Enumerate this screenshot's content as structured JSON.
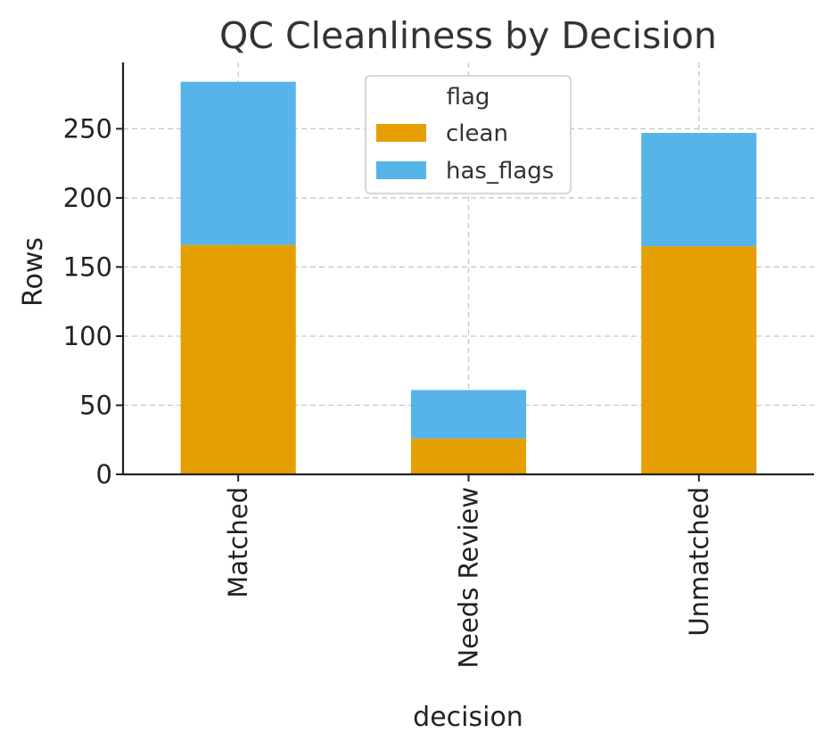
{
  "chart_data": {
    "type": "bar",
    "stacked": true,
    "title": "QC Cleanliness by Decision",
    "xlabel": "decision",
    "ylabel": "Rows",
    "categories": [
      "Matched",
      "Needs Review",
      "Unmatched"
    ],
    "series": [
      {
        "name": "clean",
        "color": "#E69F00",
        "values": [
          166,
          26,
          165
        ]
      },
      {
        "name": "has_flags",
        "color": "#56B4E9",
        "values": [
          118,
          35,
          82
        ]
      }
    ],
    "ylim": [
      0,
      298
    ],
    "yticks": [
      0,
      50,
      100,
      150,
      200,
      250
    ],
    "grid": true,
    "legend": {
      "title": "flag",
      "placement": "upper-center"
    }
  }
}
